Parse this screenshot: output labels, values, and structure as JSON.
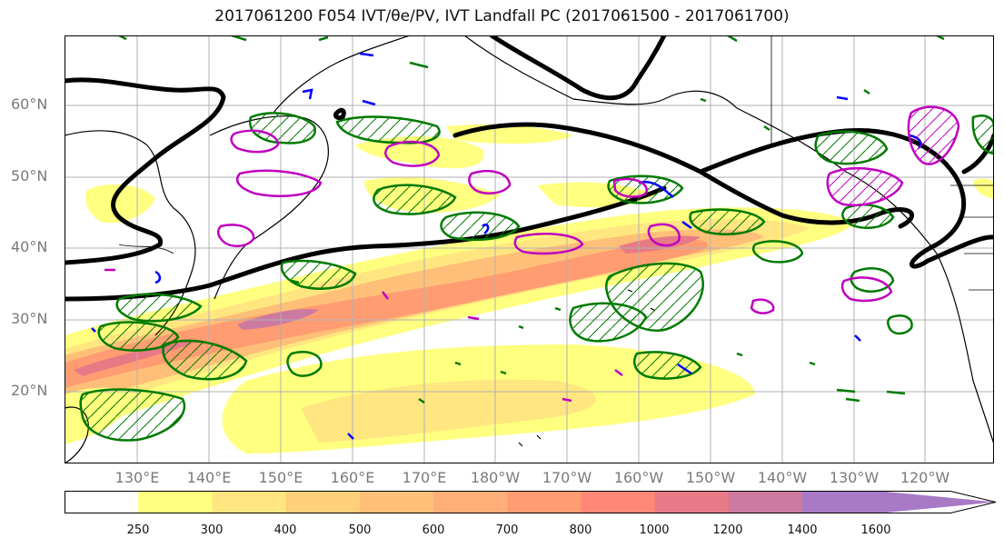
{
  "title": "2017061200 F054 IVT/θe/PV, IVT Landfall PC (2017061500 - 2017061700)",
  "lat_labels": [
    "60°N",
    "50°N",
    "40°N",
    "30°N",
    "20°N"
  ],
  "lon_labels": [
    "130°E",
    "140°E",
    "150°E",
    "160°E",
    "170°E",
    "180°W",
    "170°W",
    "160°W",
    "150°W",
    "140°W",
    "130°W",
    "120°W"
  ],
  "colorbar": {
    "levels": [
      "250",
      "300",
      "400",
      "500",
      "600",
      "700",
      "800",
      "1000",
      "1200",
      "1400",
      "1600"
    ],
    "colors": [
      "#ffffff",
      "#ffff80",
      "#ffe680",
      "#ffcf7a",
      "#ffbf78",
      "#ffae78",
      "#ff9c72",
      "#ff8878",
      "#e77a86",
      "#cd7aa0",
      "#a87ac6"
    ]
  },
  "colors": {
    "pv_contour": "#007a00",
    "theta_e_contour": "#0000ff",
    "landfall_contour": "#c000c0",
    "jet_line": "#000000"
  }
}
